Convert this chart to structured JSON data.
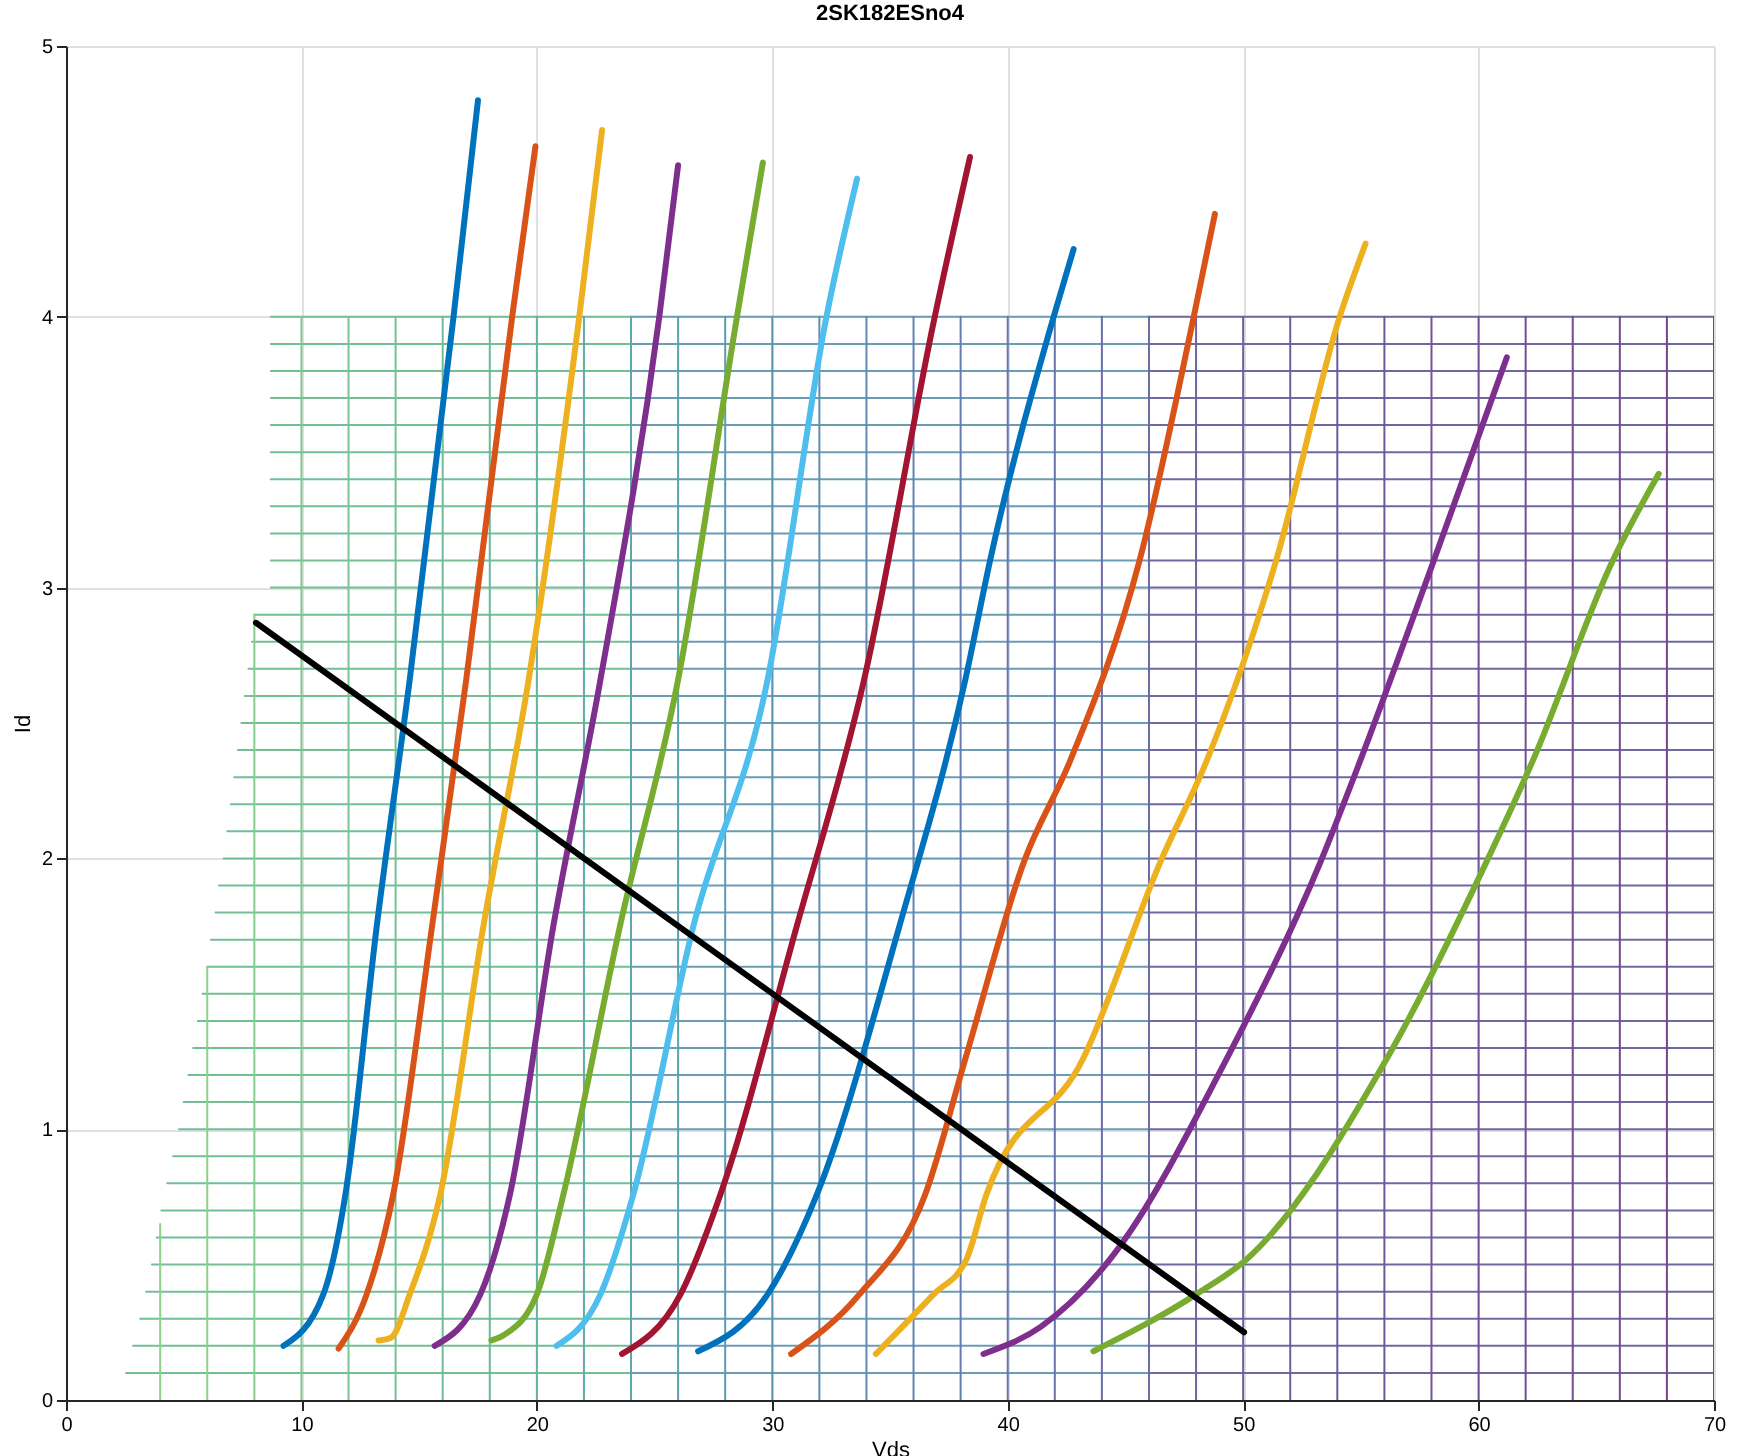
{
  "chart_data": {
    "type": "line",
    "title": "2SK182ESno4",
    "xlabel": "Vds",
    "ylabel": "Id",
    "xlim": [
      0,
      70
    ],
    "xticks": [
      0,
      10,
      20,
      30,
      40,
      50,
      60,
      70
    ],
    "ylim": [
      0,
      5
    ],
    "yticks": [
      0,
      1,
      2,
      3,
      4,
      5
    ],
    "grid": true,
    "series": [
      {
        "color": "#72bf96",
        "x": [
          2.55,
          24
        ],
        "values": [
          0.1,
          0.1
        ]
      },
      {
        "color": "#72bf96",
        "x": [
          2.85,
          24
        ],
        "values": [
          0.2,
          0.2
        ]
      },
      {
        "color": "#72bf96",
        "x": [
          3.15,
          24
        ],
        "values": [
          0.3,
          0.3
        ]
      },
      {
        "color": "#72bf96",
        "x": [
          3.4,
          24
        ],
        "values": [
          0.4,
          0.4
        ]
      },
      {
        "color": "#72bf96",
        "x": [
          3.65,
          24
        ],
        "values": [
          0.5,
          0.5
        ]
      },
      {
        "color": "#72bf96",
        "x": [
          3.85,
          24
        ],
        "values": [
          0.6,
          0.6
        ]
      },
      {
        "color": "#72bf96",
        "x": [
          4.05,
          24
        ],
        "values": [
          0.7,
          0.7
        ]
      },
      {
        "color": "#72bf96",
        "x": [
          4.3,
          24
        ],
        "values": [
          0.8,
          0.8
        ]
      },
      {
        "color": "#72bf96",
        "x": [
          4.55,
          24
        ],
        "values": [
          0.9,
          0.9
        ]
      },
      {
        "color": "#72bf96",
        "x": [
          4.8,
          24
        ],
        "values": [
          1,
          1
        ]
      },
      {
        "color": "#72bf96",
        "x": [
          5,
          24
        ],
        "values": [
          1.1,
          1.1
        ]
      },
      {
        "color": "#72bf96",
        "x": [
          5.2,
          24
        ],
        "values": [
          1.2,
          1.2
        ]
      },
      {
        "color": "#72bf96",
        "x": [
          5.4,
          24
        ],
        "values": [
          1.3,
          1.3
        ]
      },
      {
        "color": "#72bf96",
        "x": [
          5.6,
          24
        ],
        "values": [
          1.4,
          1.4
        ]
      },
      {
        "color": "#72bf96",
        "x": [
          5.8,
          24
        ],
        "values": [
          1.5,
          1.5
        ]
      },
      {
        "color": "#72bf96",
        "x": [
          6,
          24
        ],
        "values": [
          1.6,
          1.6
        ]
      },
      {
        "color": "#72bf96",
        "x": [
          6.15,
          24
        ],
        "values": [
          1.7,
          1.7
        ]
      },
      {
        "color": "#72bf96",
        "x": [
          6.35,
          24
        ],
        "values": [
          1.8,
          1.8
        ]
      },
      {
        "color": "#72bf96",
        "x": [
          6.5,
          24
        ],
        "values": [
          1.9,
          1.9
        ]
      },
      {
        "color": "#72bf96",
        "x": [
          6.7,
          24
        ],
        "values": [
          2,
          2
        ]
      },
      {
        "color": "#72bf96",
        "x": [
          6.85,
          24
        ],
        "values": [
          2.1,
          2.1
        ]
      },
      {
        "color": "#72bf96",
        "x": [
          7,
          24
        ],
        "values": [
          2.2,
          2.2
        ]
      },
      {
        "color": "#72bf96",
        "x": [
          7.15,
          24
        ],
        "values": [
          2.3,
          2.3
        ]
      },
      {
        "color": "#72bf96",
        "x": [
          7.3,
          24
        ],
        "values": [
          2.4,
          2.4
        ]
      },
      {
        "color": "#72bf96",
        "x": [
          7.45,
          24
        ],
        "values": [
          2.5,
          2.5
        ]
      },
      {
        "color": "#72bf96",
        "x": [
          7.6,
          24
        ],
        "values": [
          2.6,
          2.6
        ]
      },
      {
        "color": "#72bf96",
        "x": [
          7.75,
          24
        ],
        "values": [
          2.7,
          2.7
        ]
      },
      {
        "color": "#72bf96",
        "x": [
          7.9,
          24
        ],
        "values": [
          2.8,
          2.8
        ]
      },
      {
        "color": "#72bf96",
        "x": [
          8,
          24
        ],
        "values": [
          2.9,
          2.9
        ]
      },
      {
        "color": "#72bf96",
        "x": [
          8.7,
          24
        ],
        "values": [
          3,
          3
        ]
      },
      {
        "color": "#72bf96",
        "x": [
          8.7,
          24
        ],
        "values": [
          3.1,
          3.1
        ]
      },
      {
        "color": "#72bf96",
        "x": [
          8.7,
          24
        ],
        "values": [
          3.2,
          3.2
        ]
      },
      {
        "color": "#72bf96",
        "x": [
          8.7,
          24
        ],
        "values": [
          3.3,
          3.3
        ]
      },
      {
        "color": "#72bf96",
        "x": [
          8.7,
          24
        ],
        "values": [
          3.4,
          3.4
        ]
      },
      {
        "color": "#72bf96",
        "x": [
          8.7,
          24
        ],
        "values": [
          3.5,
          3.5
        ]
      },
      {
        "color": "#72bf96",
        "x": [
          8.7,
          24
        ],
        "values": [
          3.6,
          3.6
        ]
      },
      {
        "color": "#72bf96",
        "x": [
          8.7,
          24
        ],
        "values": [
          3.7,
          3.7
        ]
      },
      {
        "color": "#72bf96",
        "x": [
          8.7,
          24
        ],
        "values": [
          3.8,
          3.8
        ]
      },
      {
        "color": "#72bf96",
        "x": [
          8.7,
          24
        ],
        "values": [
          3.9,
          3.9
        ]
      },
      {
        "color": "#72bf96",
        "x": [
          8.7,
          24
        ],
        "values": [
          4,
          4
        ]
      },
      {
        "color": "#6a9cb4",
        "x": [
          24,
          46
        ],
        "values": [
          0.1,
          0.1
        ]
      },
      {
        "color": "#6a9cb4",
        "x": [
          24,
          46
        ],
        "values": [
          0.2,
          0.2
        ]
      },
      {
        "color": "#6a9cb4",
        "x": [
          24,
          46
        ],
        "values": [
          0.3,
          0.3
        ]
      },
      {
        "color": "#6a9cb4",
        "x": [
          24,
          46
        ],
        "values": [
          0.4,
          0.4
        ]
      },
      {
        "color": "#6a9cb4",
        "x": [
          24,
          46
        ],
        "values": [
          0.5,
          0.5
        ]
      },
      {
        "color": "#6a9cb4",
        "x": [
          24,
          46
        ],
        "values": [
          0.6,
          0.6
        ]
      },
      {
        "color": "#6a9cb4",
        "x": [
          24,
          46
        ],
        "values": [
          0.7,
          0.7
        ]
      },
      {
        "color": "#6a9cb4",
        "x": [
          24,
          46
        ],
        "values": [
          0.8,
          0.8
        ]
      },
      {
        "color": "#6a9cb4",
        "x": [
          24,
          46
        ],
        "values": [
          0.9,
          0.9
        ]
      },
      {
        "color": "#6a9cb4",
        "x": [
          24,
          46
        ],
        "values": [
          1,
          1
        ]
      },
      {
        "color": "#6a9cb4",
        "x": [
          24,
          46
        ],
        "values": [
          1.1,
          1.1
        ]
      },
      {
        "color": "#6a9cb4",
        "x": [
          24,
          46
        ],
        "values": [
          1.2,
          1.2
        ]
      },
      {
        "color": "#6a9cb4",
        "x": [
          24,
          46
        ],
        "values": [
          1.3,
          1.3
        ]
      },
      {
        "color": "#6a9cb4",
        "x": [
          24,
          46
        ],
        "values": [
          1.4,
          1.4
        ]
      },
      {
        "color": "#6a9cb4",
        "x": [
          24,
          46
        ],
        "values": [
          1.5,
          1.5
        ]
      },
      {
        "color": "#6a9cb4",
        "x": [
          24,
          46
        ],
        "values": [
          1.6,
          1.6
        ]
      },
      {
        "color": "#6a9cb4",
        "x": [
          24,
          46
        ],
        "values": [
          1.7,
          1.7
        ]
      },
      {
        "color": "#6a9cb4",
        "x": [
          24,
          46
        ],
        "values": [
          1.8,
          1.8
        ]
      },
      {
        "color": "#6a9cb4",
        "x": [
          24,
          46
        ],
        "values": [
          1.9,
          1.9
        ]
      },
      {
        "color": "#6a9cb4",
        "x": [
          24,
          46
        ],
        "values": [
          2,
          2
        ]
      },
      {
        "color": "#6a9cb4",
        "x": [
          24,
          46
        ],
        "values": [
          2.1,
          2.1
        ]
      },
      {
        "color": "#6a9cb4",
        "x": [
          24,
          46
        ],
        "values": [
          2.2,
          2.2
        ]
      },
      {
        "color": "#6a9cb4",
        "x": [
          24,
          46
        ],
        "values": [
          2.3,
          2.3
        ]
      },
      {
        "color": "#6a9cb4",
        "x": [
          24,
          46
        ],
        "values": [
          2.4,
          2.4
        ]
      },
      {
        "color": "#6a9cb4",
        "x": [
          24,
          46
        ],
        "values": [
          2.5,
          2.5
        ]
      },
      {
        "color": "#6a9cb4",
        "x": [
          24,
          46
        ],
        "values": [
          2.6,
          2.6
        ]
      },
      {
        "color": "#6a9cb4",
        "x": [
          24,
          46
        ],
        "values": [
          2.7,
          2.7
        ]
      },
      {
        "color": "#6a9cb4",
        "x": [
          24,
          46
        ],
        "values": [
          2.8,
          2.8
        ]
      },
      {
        "color": "#6a9cb4",
        "x": [
          24,
          46
        ],
        "values": [
          2.9,
          2.9
        ]
      },
      {
        "color": "#6a9cb4",
        "x": [
          24,
          46
        ],
        "values": [
          3,
          3
        ]
      },
      {
        "color": "#6a9cb4",
        "x": [
          24,
          46
        ],
        "values": [
          3.1,
          3.1
        ]
      },
      {
        "color": "#6a9cb4",
        "x": [
          24,
          46
        ],
        "values": [
          3.2,
          3.2
        ]
      },
      {
        "color": "#6a9cb4",
        "x": [
          24,
          46
        ],
        "values": [
          3.3,
          3.3
        ]
      },
      {
        "color": "#6a9cb4",
        "x": [
          24,
          46
        ],
        "values": [
          3.4,
          3.4
        ]
      },
      {
        "color": "#6a9cb4",
        "x": [
          24,
          46
        ],
        "values": [
          3.5,
          3.5
        ]
      },
      {
        "color": "#6a9cb4",
        "x": [
          24,
          46
        ],
        "values": [
          3.6,
          3.6
        ]
      },
      {
        "color": "#6a9cb4",
        "x": [
          24,
          46
        ],
        "values": [
          3.7,
          3.7
        ]
      },
      {
        "color": "#6a9cb4",
        "x": [
          24,
          46
        ],
        "values": [
          3.8,
          3.8
        ]
      },
      {
        "color": "#6a9cb4",
        "x": [
          24,
          46
        ],
        "values": [
          3.9,
          3.9
        ]
      },
      {
        "color": "#6a9cb4",
        "x": [
          24,
          46
        ],
        "values": [
          4,
          4
        ]
      },
      {
        "color": "#6f68a0",
        "x": [
          46,
          70
        ],
        "values": [
          0.1,
          0.1
        ]
      },
      {
        "color": "#6f68a0",
        "x": [
          46,
          70
        ],
        "values": [
          0.2,
          0.2
        ]
      },
      {
        "color": "#6f68a0",
        "x": [
          46,
          70
        ],
        "values": [
          0.3,
          0.3
        ]
      },
      {
        "color": "#6f68a0",
        "x": [
          46,
          70
        ],
        "values": [
          0.4,
          0.4
        ]
      },
      {
        "color": "#6f68a0",
        "x": [
          46,
          70
        ],
        "values": [
          0.5,
          0.5
        ]
      },
      {
        "color": "#6f68a0",
        "x": [
          46,
          70
        ],
        "values": [
          0.6,
          0.6
        ]
      },
      {
        "color": "#6f68a0",
        "x": [
          46,
          70
        ],
        "values": [
          0.7,
          0.7
        ]
      },
      {
        "color": "#6f68a0",
        "x": [
          46,
          70
        ],
        "values": [
          0.8,
          0.8
        ]
      },
      {
        "color": "#6f68a0",
        "x": [
          46,
          70
        ],
        "values": [
          0.9,
          0.9
        ]
      },
      {
        "color": "#6f68a0",
        "x": [
          46,
          70
        ],
        "values": [
          1,
          1
        ]
      },
      {
        "color": "#6f68a0",
        "x": [
          46,
          70
        ],
        "values": [
          1.1,
          1.1
        ]
      },
      {
        "color": "#6f68a0",
        "x": [
          46,
          70
        ],
        "values": [
          1.2,
          1.2
        ]
      },
      {
        "color": "#6f68a0",
        "x": [
          46,
          70
        ],
        "values": [
          1.3,
          1.3
        ]
      },
      {
        "color": "#6f68a0",
        "x": [
          46,
          70
        ],
        "values": [
          1.4,
          1.4
        ]
      },
      {
        "color": "#6f68a0",
        "x": [
          46,
          70
        ],
        "values": [
          1.5,
          1.5
        ]
      },
      {
        "color": "#6f68a0",
        "x": [
          46,
          70
        ],
        "values": [
          1.6,
          1.6
        ]
      },
      {
        "color": "#6f68a0",
        "x": [
          46,
          70
        ],
        "values": [
          1.7,
          1.7
        ]
      },
      {
        "color": "#6f68a0",
        "x": [
          46,
          70
        ],
        "values": [
          1.8,
          1.8
        ]
      },
      {
        "color": "#6f68a0",
        "x": [
          46,
          70
        ],
        "values": [
          1.9,
          1.9
        ]
      },
      {
        "color": "#6f68a0",
        "x": [
          46,
          70
        ],
        "values": [
          2,
          2
        ]
      },
      {
        "color": "#6f68a0",
        "x": [
          46,
          70
        ],
        "values": [
          2.1,
          2.1
        ]
      },
      {
        "color": "#6f68a0",
        "x": [
          46,
          70
        ],
        "values": [
          2.2,
          2.2
        ]
      },
      {
        "color": "#6f68a0",
        "x": [
          46,
          70
        ],
        "values": [
          2.3,
          2.3
        ]
      },
      {
        "color": "#6f68a0",
        "x": [
          46,
          70
        ],
        "values": [
          2.4,
          2.4
        ]
      },
      {
        "color": "#6f68a0",
        "x": [
          46,
          70
        ],
        "values": [
          2.5,
          2.5
        ]
      },
      {
        "color": "#6f68a0",
        "x": [
          46,
          70
        ],
        "values": [
          2.6,
          2.6
        ]
      },
      {
        "color": "#6f68a0",
        "x": [
          46,
          70
        ],
        "values": [
          2.7,
          2.7
        ]
      },
      {
        "color": "#6f68a0",
        "x": [
          46,
          70
        ],
        "values": [
          2.8,
          2.8
        ]
      },
      {
        "color": "#6f68a0",
        "x": [
          46,
          70
        ],
        "values": [
          2.9,
          2.9
        ]
      },
      {
        "color": "#6f68a0",
        "x": [
          46,
          70
        ],
        "values": [
          3,
          3
        ]
      },
      {
        "color": "#6f68a0",
        "x": [
          46,
          70
        ],
        "values": [
          3.1,
          3.1
        ]
      },
      {
        "color": "#6f68a0",
        "x": [
          46,
          70
        ],
        "values": [
          3.2,
          3.2
        ]
      },
      {
        "color": "#6f68a0",
        "x": [
          46,
          70
        ],
        "values": [
          3.3,
          3.3
        ]
      },
      {
        "color": "#6f68a0",
        "x": [
          46,
          70
        ],
        "values": [
          3.4,
          3.4
        ]
      },
      {
        "color": "#6f68a0",
        "x": [
          46,
          70
        ],
        "values": [
          3.5,
          3.5
        ]
      },
      {
        "color": "#6f68a0",
        "x": [
          46,
          70
        ],
        "values": [
          3.6,
          3.6
        ]
      },
      {
        "color": "#6f68a0",
        "x": [
          46,
          70
        ],
        "values": [
          3.7,
          3.7
        ]
      },
      {
        "color": "#6f68a0",
        "x": [
          46,
          70
        ],
        "values": [
          3.8,
          3.8
        ]
      },
      {
        "color": "#6f68a0",
        "x": [
          46,
          70
        ],
        "values": [
          3.9,
          3.9
        ]
      },
      {
        "color": "#6f68a0",
        "x": [
          46,
          70
        ],
        "values": [
          4,
          4
        ]
      },
      {
        "color": "#8fd08a",
        "x": [
          4,
          4
        ],
        "values": [
          0,
          0.65
        ]
      },
      {
        "color": "#8ccf8c",
        "x": [
          6,
          6
        ],
        "values": [
          0,
          1.6
        ]
      },
      {
        "color": "#86cc8e",
        "x": [
          8,
          8
        ],
        "values": [
          0,
          2.9
        ]
      },
      {
        "color": "#80c990",
        "x": [
          10,
          10
        ],
        "values": [
          0,
          4
        ]
      },
      {
        "color": "#7ac594",
        "x": [
          12,
          12
        ],
        "values": [
          0,
          4
        ]
      },
      {
        "color": "#74c196",
        "x": [
          14,
          14
        ],
        "values": [
          0,
          4
        ]
      },
      {
        "color": "#6ebd98",
        "x": [
          16,
          16
        ],
        "values": [
          0,
          4
        ]
      },
      {
        "color": "#68b89c",
        "x": [
          18,
          18
        ],
        "values": [
          0,
          4
        ]
      },
      {
        "color": "#63b39f",
        "x": [
          20,
          20
        ],
        "values": [
          0,
          4
        ]
      },
      {
        "color": "#5fada4",
        "x": [
          22,
          22
        ],
        "values": [
          0,
          4
        ]
      },
      {
        "color": "#5ca7a8",
        "x": [
          24,
          24
        ],
        "values": [
          0,
          4
        ]
      },
      {
        "color": "#5ba1ac",
        "x": [
          26,
          26
        ],
        "values": [
          0,
          4
        ]
      },
      {
        "color": "#5b9bb0",
        "x": [
          28,
          28
        ],
        "values": [
          0,
          4
        ]
      },
      {
        "color": "#5c95b2",
        "x": [
          30,
          30
        ],
        "values": [
          0,
          4
        ]
      },
      {
        "color": "#5e8fb3",
        "x": [
          32,
          32
        ],
        "values": [
          0,
          4
        ]
      },
      {
        "color": "#6089b3",
        "x": [
          34,
          34
        ],
        "values": [
          0,
          4
        ]
      },
      {
        "color": "#6283b2",
        "x": [
          36,
          36
        ],
        "values": [
          0,
          4
        ]
      },
      {
        "color": "#647db0",
        "x": [
          38,
          38
        ],
        "values": [
          0,
          4
        ]
      },
      {
        "color": "#6677ae",
        "x": [
          40,
          40
        ],
        "values": [
          0,
          4
        ]
      },
      {
        "color": "#6872ab",
        "x": [
          42,
          42
        ],
        "values": [
          0,
          4
        ]
      },
      {
        "color": "#696ea8",
        "x": [
          44,
          44
        ],
        "values": [
          0,
          4
        ]
      },
      {
        "color": "#6a6aa5",
        "x": [
          46,
          46
        ],
        "values": [
          0,
          4
        ]
      },
      {
        "color": "#6b66a2",
        "x": [
          48,
          48
        ],
        "values": [
          0,
          4
        ]
      },
      {
        "color": "#6c62a0",
        "x": [
          50,
          50
        ],
        "values": [
          0,
          4
        ]
      },
      {
        "color": "#6d5e9e",
        "x": [
          52,
          52
        ],
        "values": [
          0,
          4
        ]
      },
      {
        "color": "#6e5a9c",
        "x": [
          54,
          54
        ],
        "values": [
          0,
          4
        ]
      },
      {
        "color": "#6f579a",
        "x": [
          56,
          56
        ],
        "values": [
          0,
          4
        ]
      },
      {
        "color": "#705498",
        "x": [
          58,
          58
        ],
        "values": [
          0,
          4
        ]
      },
      {
        "color": "#715196",
        "x": [
          60,
          60
        ],
        "values": [
          0,
          4
        ]
      },
      {
        "color": "#724e94",
        "x": [
          62,
          62
        ],
        "values": [
          0,
          4
        ]
      },
      {
        "color": "#734b92",
        "x": [
          64,
          64
        ],
        "values": [
          0,
          4
        ]
      },
      {
        "color": "#744890",
        "x": [
          66,
          66
        ],
        "values": [
          0,
          4
        ]
      },
      {
        "color": "#75458e",
        "x": [
          68,
          68
        ],
        "values": [
          0,
          4
        ]
      },
      {
        "color": "#76428c",
        "x": [
          70,
          70
        ],
        "values": [
          0,
          4
        ]
      },
      {
        "color": "#0072bd",
        "x": [
          9.24,
          10.93,
          11.87,
          13.2,
          14.6,
          16.46,
          17.5
        ],
        "values": [
          0.2,
          0.39,
          0.76,
          1.75,
          2.66,
          4.0,
          4.8
        ]
      },
      {
        "color": "#d95319",
        "x": [
          11.58,
          12.77,
          13.9,
          15.55,
          17.0,
          18.95,
          19.94
        ],
        "values": [
          0.19,
          0.39,
          0.76,
          1.75,
          2.66,
          4.0,
          4.63
        ]
      },
      {
        "color": "#edb120",
        "x": [
          13.28,
          13.8,
          14.6,
          15.9,
          17.73,
          19.65,
          21.8,
          22.77
        ],
        "values": [
          0.22,
          0.23,
          0.39,
          0.76,
          1.75,
          2.66,
          4.0,
          4.69
        ]
      },
      {
        "color": "#7e2f8e",
        "x": [
          15.66,
          17.6,
          18.86,
          20.7,
          22.7,
          25.2,
          26.0
        ],
        "values": [
          0.2,
          0.39,
          0.76,
          1.75,
          2.66,
          4.0,
          4.56
        ]
      },
      {
        "color": "#77ac30",
        "x": [
          18.07,
          18.6,
          20.0,
          21.13,
          23.53,
          26.0,
          28.5,
          29.6
        ],
        "values": [
          0.22,
          0.24,
          0.39,
          0.76,
          1.75,
          2.66,
          4.0,
          4.57
        ]
      },
      {
        "color": "#4dbeee",
        "x": [
          20.84,
          22.7,
          24.1,
          26.65,
          29.8,
          32.3,
          33.6
        ],
        "values": [
          0.2,
          0.39,
          0.76,
          1.75,
          2.66,
          4.0,
          4.51
        ]
      },
      {
        "color": "#a2142f",
        "x": [
          23.62,
          26.1,
          27.8,
          31.04,
          33.9,
          36.9,
          38.4
        ],
        "values": [
          0.17,
          0.39,
          0.76,
          1.75,
          2.66,
          4.0,
          4.59
        ]
      },
      {
        "color": "#0072bd",
        "x": [
          26.85,
          29.8,
          31.9,
          35.4,
          38.2,
          39.25,
          41.95,
          42.8
        ],
        "values": [
          0.18,
          0.39,
          0.76,
          1.75,
          2.66,
          3.1,
          4.0,
          4.25
        ]
      },
      {
        "color": "#d95319",
        "x": [
          30.8,
          33.7,
          36.5,
          38.2,
          40.7,
          42.65,
          45.6,
          47.9,
          48.8
        ],
        "values": [
          0.17,
          0.39,
          0.76,
          1.26,
          1.99,
          2.36,
          3.1,
          4.0,
          4.38
        ]
      },
      {
        "color": "#edb120",
        "x": [
          34.4,
          36.85,
          38.25,
          39.1,
          43.2,
          46.5,
          48.45,
          51.4,
          54.1,
          55.2
        ],
        "values": [
          0.17,
          0.39,
          0.52,
          0.76,
          1.26,
          1.99,
          2.36,
          3.1,
          4.0,
          4.27
        ]
      },
      {
        "color": "#7e2f8e",
        "x": [
          38.97,
          41.4,
          44.35,
          49.3,
          53.3,
          54.97,
          58.1,
          61.2
        ],
        "values": [
          0.17,
          0.27,
          0.52,
          1.26,
          1.99,
          2.36,
          3.1,
          3.85
        ]
      },
      {
        "color": "#77ac30",
        "x": [
          43.64,
          48.0,
          50.15,
          56.1,
          60.35,
          62.3,
          65.7,
          67.65
        ],
        "values": [
          0.18,
          0.39,
          0.52,
          1.26,
          1.99,
          2.36,
          3.1,
          3.42
        ]
      },
      {
        "color": "#000000",
        "x": [
          8.07,
          50.04
        ],
        "values": [
          2.87,
          0.25
        ]
      }
    ]
  }
}
